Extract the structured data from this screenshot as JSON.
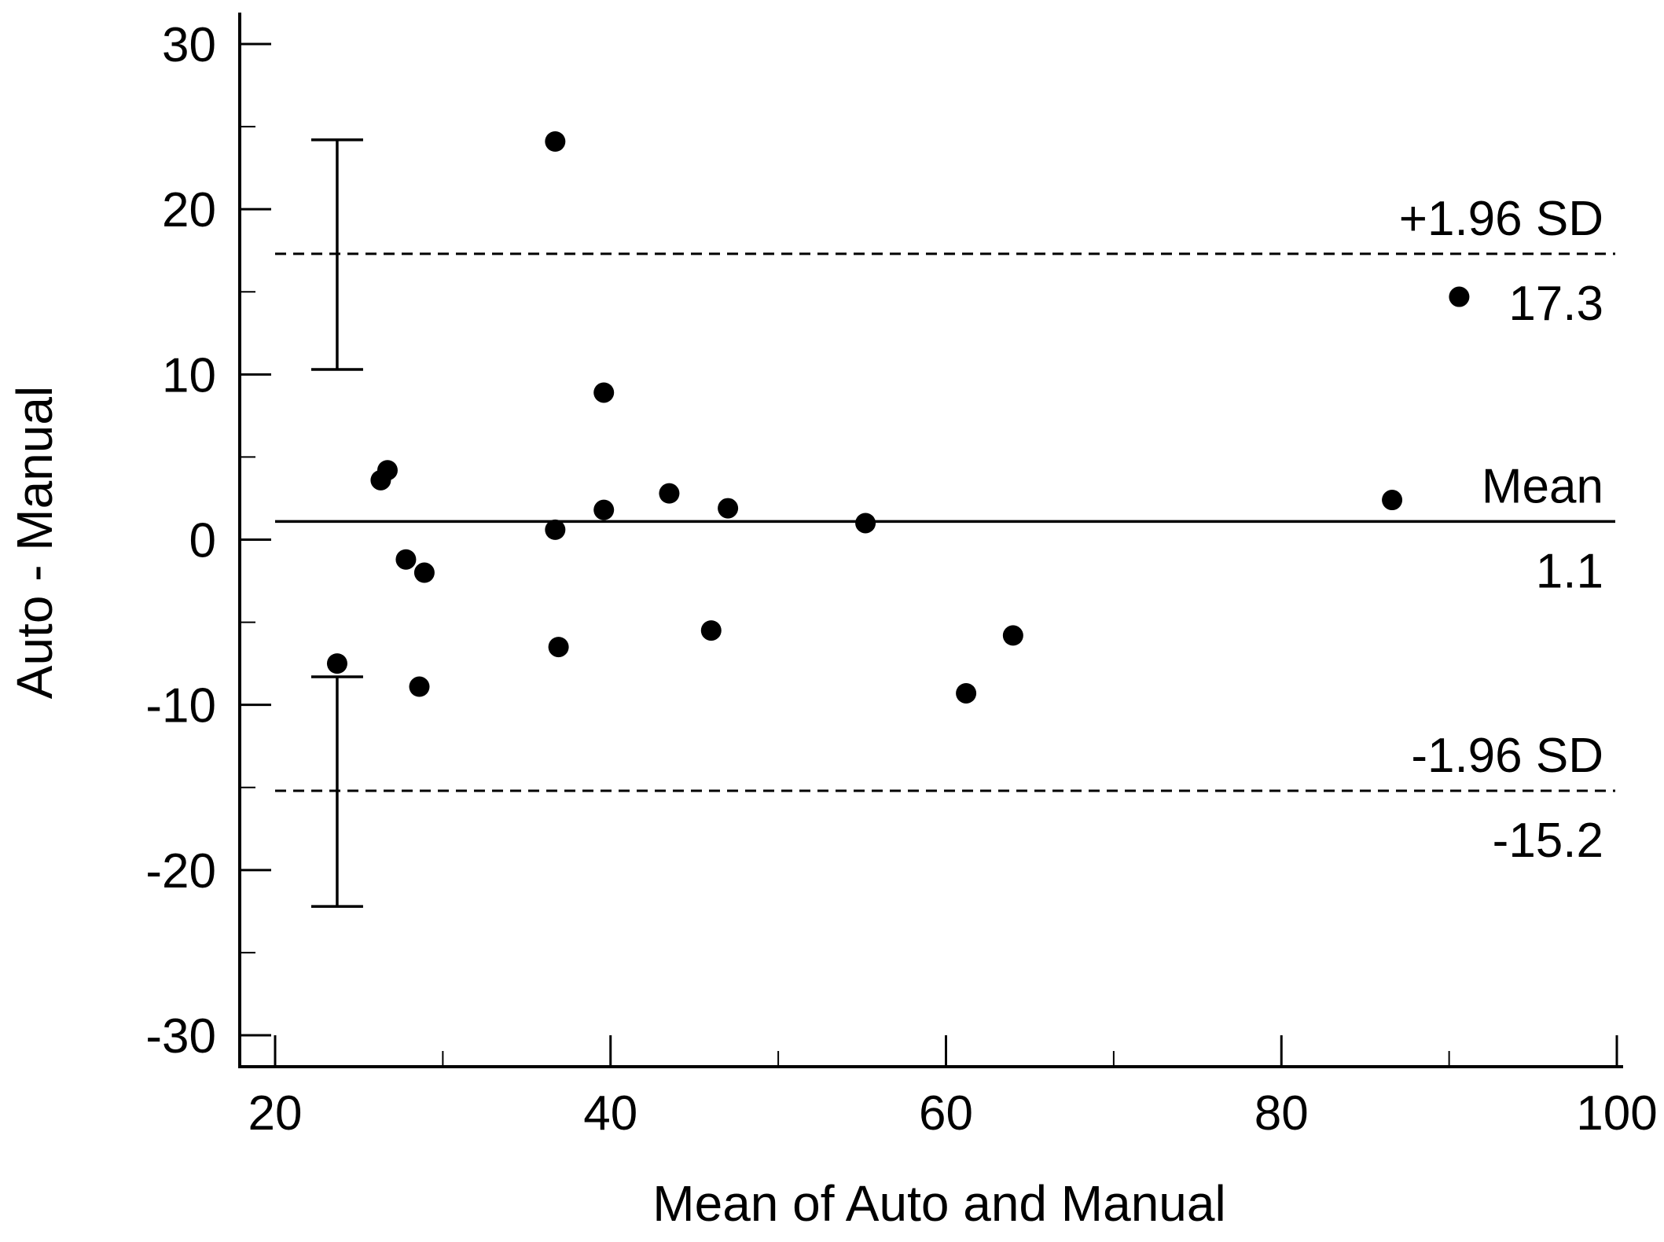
{
  "chart_data": {
    "type": "scatter",
    "xlabel": "Mean of Auto and Manual",
    "ylabel": "Auto - Manual",
    "xlim": [
      20,
      100
    ],
    "ylim": [
      -30,
      30
    ],
    "x_ticks": [
      20,
      40,
      60,
      80,
      100
    ],
    "x_minor_ticks": [
      30,
      50,
      70,
      90
    ],
    "y_ticks": [
      -30,
      -20,
      -10,
      0,
      10,
      20,
      30
    ],
    "y_minor_ticks": [
      -25,
      -15,
      -5,
      5,
      15,
      25
    ],
    "grid": false,
    "points": [
      {
        "x": 23.7,
        "y": -7.5
      },
      {
        "x": 26.3,
        "y": 3.6
      },
      {
        "x": 26.7,
        "y": 4.2
      },
      {
        "x": 27.8,
        "y": -1.2
      },
      {
        "x": 28.6,
        "y": -8.9
      },
      {
        "x": 28.9,
        "y": -2.0
      },
      {
        "x": 36.7,
        "y": 24.1
      },
      {
        "x": 36.7,
        "y": 0.6
      },
      {
        "x": 36.9,
        "y": -6.5
      },
      {
        "x": 39.6,
        "y": 8.9
      },
      {
        "x": 39.6,
        "y": 1.8
      },
      {
        "x": 43.5,
        "y": 2.8
      },
      {
        "x": 46.0,
        "y": -5.5
      },
      {
        "x": 47.0,
        "y": 1.9
      },
      {
        "x": 55.2,
        "y": 1.0
      },
      {
        "x": 61.2,
        "y": -9.3
      },
      {
        "x": 64.0,
        "y": -5.8
      },
      {
        "x": 86.6,
        "y": 2.4
      },
      {
        "x": 90.6,
        "y": 14.7
      }
    ],
    "mean_line": {
      "label": "Mean",
      "value": 1.1,
      "value_text": "1.1"
    },
    "upper_limit": {
      "label": "+1.96 SD",
      "value": 17.3,
      "value_text": "17.3"
    },
    "lower_limit": {
      "label": "-1.96 SD",
      "value": -15.2,
      "value_text": "-15.2"
    },
    "upper_limit_ci": {
      "x": 23.7,
      "low": 10.3,
      "high": 24.2
    },
    "lower_limit_ci": {
      "x": 23.7,
      "low": -22.2,
      "high": -8.3
    }
  }
}
